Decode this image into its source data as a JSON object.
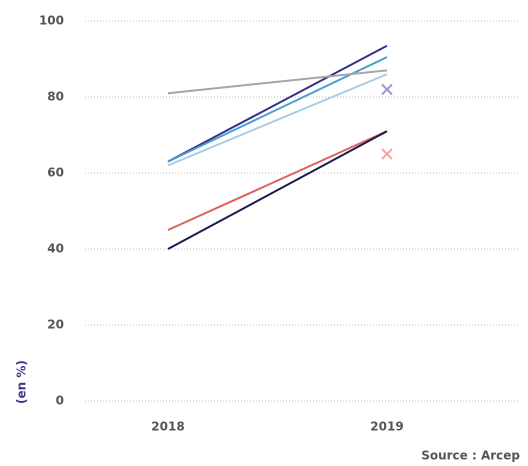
{
  "chart_data": {
    "type": "line",
    "y_label": "(en %)",
    "source": "Source : Arcep",
    "categories": [
      "2018",
      "2019"
    ],
    "series": [
      {
        "color": "#35318a",
        "values": [
          63,
          93.5
        ]
      },
      {
        "color": "#4a9fd2",
        "values": [
          63,
          90.5
        ]
      },
      {
        "color": "#a9cde9",
        "values": [
          62,
          86
        ]
      },
      {
        "color": "#a6a6a6",
        "values": [
          81,
          87
        ]
      },
      {
        "color": "#e0605e",
        "values": [
          45,
          71
        ]
      },
      {
        "color": "#1d1b4d",
        "values": [
          40,
          71
        ]
      },
      {
        "color": "#9a94c8",
        "marker": "x",
        "values": [
          null,
          82
        ]
      },
      {
        "color": "#f0a6a4",
        "marker": "x",
        "values": [
          null,
          65
        ]
      }
    ],
    "ylim": [
      0,
      100
    ],
    "yticks": [
      0,
      20,
      40,
      60,
      80,
      100
    ],
    "grid": true
  }
}
